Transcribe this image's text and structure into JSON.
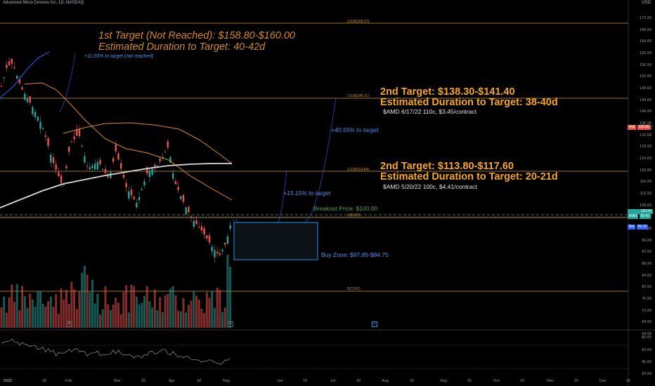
{
  "header": {
    "symbol_line": "Advanced Micro Devices Inc, 1D, NASDAQ",
    "currency": "USD"
  },
  "annotations": {
    "target1_line1": "1st Target (Not Reached): $158.80-$160.00",
    "target1_line2": "Estimated Duration to Target: 40-42d",
    "target1_pct": "+11.00% to target (not reached)",
    "target2a_line1": "2nd Target: $138.30-$141.40",
    "target2a_line2": "Estimated Duration to Target: 38-40d",
    "target2a_option": "$AMD 6/17/22 110c, $3.45/contract",
    "target2a_pct": "+40.55% to target",
    "target2b_line1": "2nd Target: $113.80-$117.60",
    "target2b_line2": "Estimated Duration to Target: 20-21d",
    "target2b_option": "$AMD 5/20/22 100c, $4.41/contract",
    "target2b_pct": "+15.15% to target",
    "breakout": "Breakout Price: $100.00",
    "buy_zone": "Buy Zone: $97.85-$84.75"
  },
  "fib_labels": {
    "f3618": "3.618(165.37)",
    "f2618": "2.618(140.11)",
    "f1618": "1.618(114.84)",
    "f1": "1(99.23)",
    "f0": "0(73.97)"
  },
  "price_axis": {
    "ticks": [
      "172.00",
      "168.00",
      "164.00",
      "160.00",
      "156.00",
      "152.00",
      "148.00",
      "144.00",
      "140.00",
      "136.00",
      "132.00",
      "128.00",
      "124.00",
      "120.00",
      "116.00",
      "112.00",
      "108.00",
      "104.00",
      "100.00",
      "96.00",
      "92.00",
      "88.00",
      "84.00",
      "80.00",
      "76.00",
      "72.00",
      "68.00",
      "64.00"
    ],
    "ask_label": "Ask",
    "ask_value": "130.00",
    "amd_label": "AMD",
    "amd_value": "99.42",
    "last_value": "100.00",
    "bid_label": "Bid",
    "bid_value": "95.70"
  },
  "rsi_axis": {
    "ticks": [
      "80.00",
      "60.00",
      "40.00",
      "20.00"
    ]
  },
  "time_axis": {
    "ticks": [
      "2022",
      "18",
      "Feb",
      "Mar",
      "15",
      "Apr",
      "18",
      "May",
      "Jun",
      "15",
      "Jul",
      "18",
      "Aug",
      "15",
      "Sep",
      "15",
      "Oct",
      "15",
      "Nov",
      "15",
      "Dec",
      "15"
    ]
  },
  "markers": {
    "earnings1": "E",
    "earnings2": "E",
    "earnings3": "E"
  },
  "colors": {
    "up": "#26a69a",
    "down": "#ef5350",
    "fib": "#d79b36",
    "ma_slow": "#d9d9d9",
    "ma_blue": "#2962ff",
    "buy_zone": "#2196f3"
  }
}
